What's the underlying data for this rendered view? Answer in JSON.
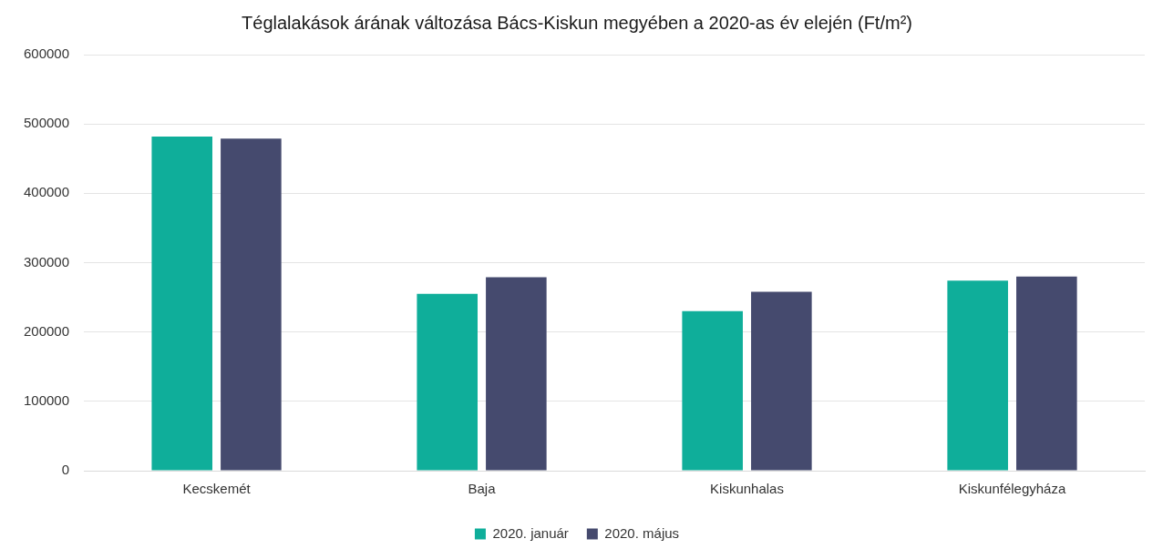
{
  "chart_data": {
    "type": "bar",
    "title": "Téglalakások árának változása Bács-Kiskun megyében a 2020-as év elején (Ft/m²)",
    "categories": [
      "Kecskemét",
      "Baja",
      "Kiskunhalas",
      "Kiskunfélegyháza"
    ],
    "series": [
      {
        "name": "2020. január",
        "color": "#0fae9a",
        "values": [
          482000,
          255000,
          230000,
          274000
        ]
      },
      {
        "name": "2020. május",
        "color": "#454a6e",
        "values": [
          479000,
          279000,
          258000,
          280000
        ]
      }
    ],
    "ylim": [
      0,
      600000
    ],
    "yticks": [
      0,
      100000,
      200000,
      300000,
      400000,
      500000,
      600000
    ],
    "grid": "y",
    "legend": "bottom"
  }
}
